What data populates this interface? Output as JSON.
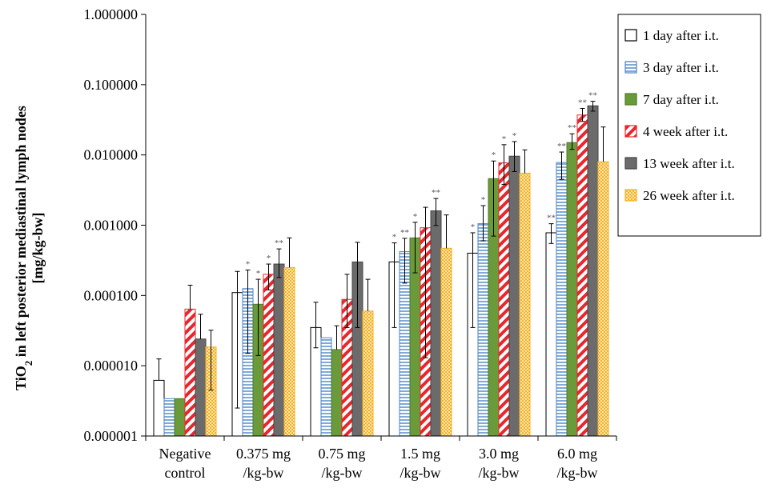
{
  "chart_data": {
    "type": "bar",
    "y_scale": "log",
    "ylabel_line1_prefix": "TiO",
    "ylabel_line1_sub": "2",
    "ylabel_line1_suffix": " in left posterior mediastinal lymph nodes",
    "ylabel_line2": "[mg/kg-bw]",
    "ylim": [
      1e-06,
      1.0
    ],
    "yticks": [
      {
        "value": 1,
        "label": "1.000000"
      },
      {
        "value": 0.1,
        "label": "0.100000"
      },
      {
        "value": 0.01,
        "label": "0.010000"
      },
      {
        "value": 0.001,
        "label": "0.001000"
      },
      {
        "value": 0.0001,
        "label": "0.000100"
      },
      {
        "value": 1e-05,
        "label": "0.000010"
      },
      {
        "value": 1e-06,
        "label": "0.000001"
      }
    ],
    "categories": [
      {
        "line1": "Negative",
        "line2": "control"
      },
      {
        "line1": "0.375 mg",
        "line2": "/kg-bw"
      },
      {
        "line1": "0.75 mg",
        "line2": "/kg-bw"
      },
      {
        "line1": "1.5 mg",
        "line2": "/kg-bw"
      },
      {
        "line1": "3.0 mg",
        "line2": "/kg-bw"
      },
      {
        "line1": "6.0 mg",
        "line2": "/kg-bw"
      }
    ],
    "legend_position": "right",
    "series": [
      {
        "name": "1 day after i.t.",
        "pattern": "empty",
        "color": "#ffffff",
        "stroke": "#000000",
        "values": [
          6.2e-06,
          0.00011,
          3.5e-05,
          0.0003,
          0.0004,
          0.00078
        ],
        "err_high": [
          1.25e-05,
          0.00022,
          8e-05,
          0.00056,
          0.00078,
          0.00105
        ],
        "err_low": [
          null,
          2.5e-06,
          1.8e-05,
          3.5e-05,
          3.5e-05,
          0.00055
        ],
        "sig": [
          "",
          "",
          "",
          "*",
          "*",
          "**"
        ]
      },
      {
        "name": "3 day after i.t.",
        "pattern": "hlines",
        "color": "#4a86c8",
        "stroke": "#4a86c8",
        "values": [
          3.4e-06,
          0.000125,
          2.5e-05,
          0.00042,
          0.00105,
          0.0078
        ],
        "err_high": [
          null,
          0.00023,
          null,
          0.00065,
          0.0019,
          0.011
        ],
        "err_low": [
          null,
          1.5e-05,
          null,
          0.00015,
          0.0006,
          0.0045
        ],
        "sig": [
          "",
          "*",
          "",
          "**",
          "*",
          "**"
        ]
      },
      {
        "name": "7 day after i.t.",
        "pattern": "solid",
        "color": "#6a9a3a",
        "stroke": "#4e7a28",
        "values": [
          3.4e-06,
          7.5e-05,
          1.7e-05,
          0.00066,
          0.0046,
          0.015
        ],
        "err_high": [
          null,
          0.00017,
          3.7e-05,
          0.0011,
          0.0082,
          0.02
        ],
        "err_low": [
          null,
          1.4e-05,
          null,
          0.00021,
          0.0007,
          0.012
        ],
        "sig": [
          "",
          "*",
          "",
          "*",
          "*",
          "**"
        ]
      },
      {
        "name": "4 week after i.t.",
        "pattern": "diag",
        "color": "#e8262d",
        "stroke": "#e8262d",
        "values": [
          6.4e-05,
          0.0002,
          8.8e-05,
          0.00092,
          0.0077,
          0.037
        ],
        "err_high": [
          0.00014,
          0.00028,
          0.0002,
          0.0018,
          0.014,
          0.046
        ],
        "err_low": [
          null,
          0.00012,
          3.5e-05,
          1.3e-05,
          0.0038,
          0.03
        ],
        "sig": [
          "",
          "*",
          "",
          "",
          "*",
          "**"
        ]
      },
      {
        "name": "13 week after i.t.",
        "pattern": "solid",
        "color": "#6b6b6b",
        "stroke": "#444444",
        "values": [
          2.4e-05,
          0.00028,
          0.0003,
          0.0016,
          0.0096,
          0.05
        ],
        "err_high": [
          5.4e-05,
          0.00046,
          0.00057,
          0.0024,
          0.0155,
          0.058
        ],
        "err_low": [
          null,
          0.00018,
          3.5e-05,
          0.00099,
          0.0058,
          0.042
        ],
        "sig": [
          "",
          "**",
          "",
          "**",
          "*",
          "**"
        ]
      },
      {
        "name": "26 week after i.t.",
        "pattern": "checker",
        "color": "#f5b021",
        "stroke": "#f5b021",
        "values": [
          1.85e-05,
          0.00025,
          6e-05,
          0.00047,
          0.0055,
          0.008
        ],
        "err_high": [
          3.2e-05,
          0.00066,
          0.00017,
          0.0014,
          0.0118,
          0.025
        ],
        "err_low": [
          4.5e-06,
          null,
          null,
          null,
          null,
          null
        ],
        "sig": [
          "",
          "",
          "",
          "",
          "",
          ""
        ]
      }
    ]
  }
}
